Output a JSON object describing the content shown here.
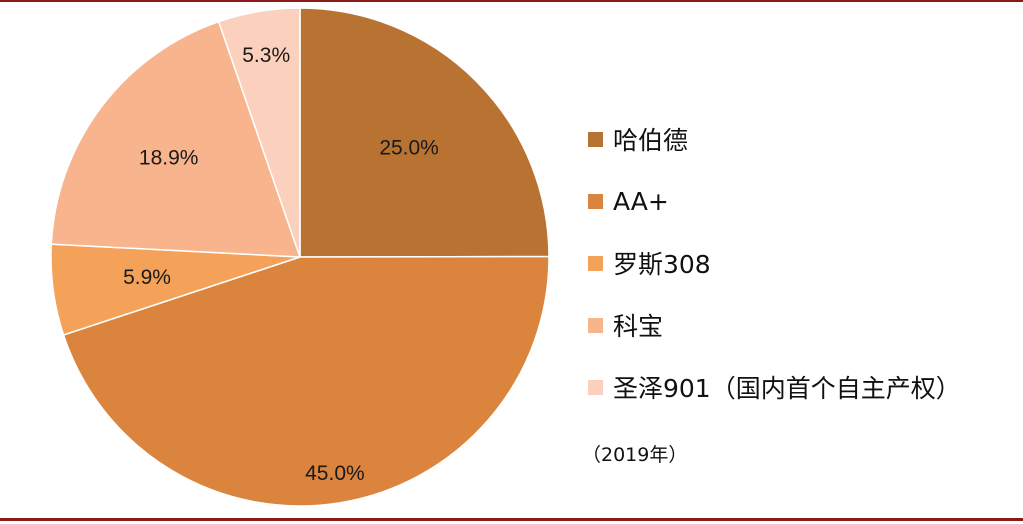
{
  "chart_data": {
    "type": "pie",
    "start_angle": "12 o'clock",
    "direction": "clockwise",
    "slices": [
      {
        "name": "哈伯德",
        "value": 25.0,
        "label": "25.0%",
        "color": "#b87333"
      },
      {
        "name": "AA+",
        "value": 45.0,
        "label": "45.0%",
        "color": "#db843d"
      },
      {
        "name": "罗斯308",
        "value": 5.9,
        "label": "5.9%",
        "color": "#f4a15a"
      },
      {
        "name": "科宝",
        "value": 18.9,
        "label": "18.9%",
        "color": "#f7b48d"
      },
      {
        "name": "圣泽901（国内首个自主产权）",
        "value": 5.3,
        "label": "5.3%",
        "color": "#fbd0bd"
      }
    ],
    "legend_position": "right",
    "note": "（2019年）"
  }
}
